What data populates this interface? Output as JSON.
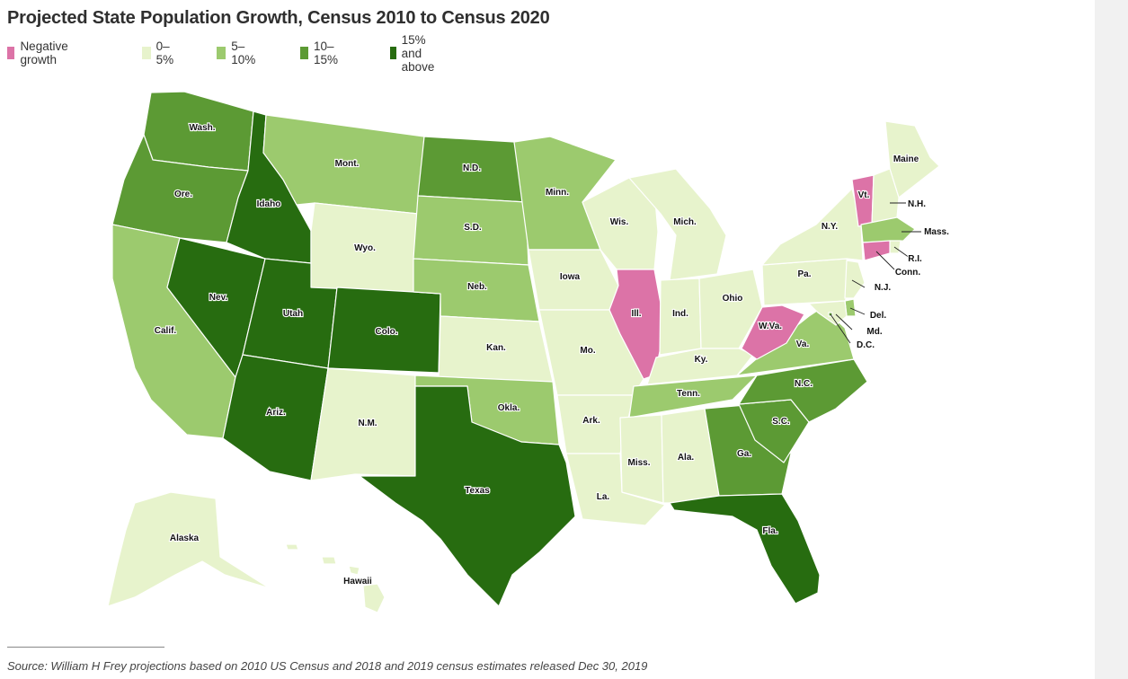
{
  "title": "Projected State Population Growth, Census 2010 to Census 2020",
  "legend": [
    {
      "label": "Negative growth",
      "color": "#dc73a7"
    },
    {
      "label": "0–5%",
      "color": "#e7f3cc"
    },
    {
      "label": "5–10%",
      "color": "#9cca6e"
    },
    {
      "label": "10–15%",
      "color": "#5c9a34"
    },
    {
      "label": "15% and above",
      "color": "#276c10"
    }
  ],
  "states": [
    {
      "label": "Wash.",
      "category": "10–15%"
    },
    {
      "label": "Ore.",
      "category": "10–15%"
    },
    {
      "label": "Calif.",
      "category": "5–10%"
    },
    {
      "label": "Idaho",
      "category": "15% and above"
    },
    {
      "label": "Nev.",
      "category": "15% and above"
    },
    {
      "label": "Utah",
      "category": "15% and above"
    },
    {
      "label": "Ariz.",
      "category": "15% and above"
    },
    {
      "label": "Mont.",
      "category": "5–10%"
    },
    {
      "label": "Wyo.",
      "category": "0–5%"
    },
    {
      "label": "Colo.",
      "category": "15% and above"
    },
    {
      "label": "N.M.",
      "category": "0–5%"
    },
    {
      "label": "N.D.",
      "category": "10–15%"
    },
    {
      "label": "S.D.",
      "category": "5–10%"
    },
    {
      "label": "Neb.",
      "category": "5–10%"
    },
    {
      "label": "Kan.",
      "category": "0–5%"
    },
    {
      "label": "Okla.",
      "category": "5–10%"
    },
    {
      "label": "Texas",
      "category": "15% and above"
    },
    {
      "label": "Minn.",
      "category": "5–10%"
    },
    {
      "label": "Iowa",
      "category": "0–5%"
    },
    {
      "label": "Mo.",
      "category": "0–5%"
    },
    {
      "label": "Ark.",
      "category": "0–5%"
    },
    {
      "label": "La.",
      "category": "0–5%"
    },
    {
      "label": "Wis.",
      "category": "0–5%"
    },
    {
      "label": "Ill.",
      "category": "Negative growth"
    },
    {
      "label": "Mich.",
      "category": "0–5%"
    },
    {
      "label": "Ind.",
      "category": "0–5%"
    },
    {
      "label": "Ohio",
      "category": "0–5%"
    },
    {
      "label": "Ky.",
      "category": "0–5%"
    },
    {
      "label": "Tenn.",
      "category": "5–10%"
    },
    {
      "label": "Miss.",
      "category": "0–5%"
    },
    {
      "label": "Ala.",
      "category": "0–5%"
    },
    {
      "label": "Ga.",
      "category": "10–15%"
    },
    {
      "label": "Fla.",
      "category": "15% and above"
    },
    {
      "label": "S.C.",
      "category": "10–15%"
    },
    {
      "label": "N.C.",
      "category": "10–15%"
    },
    {
      "label": "Va.",
      "category": "5–10%"
    },
    {
      "label": "W.Va.",
      "category": "Negative growth"
    },
    {
      "label": "Pa.",
      "category": "0–5%"
    },
    {
      "label": "N.Y.",
      "category": "0–5%"
    },
    {
      "label": "Maine",
      "category": "0–5%"
    },
    {
      "label": "Vt.",
      "category": "Negative growth"
    },
    {
      "label": "N.H.",
      "category": "0–5%"
    },
    {
      "label": "Mass.",
      "category": "5–10%"
    },
    {
      "label": "R.I.",
      "category": "0–5%"
    },
    {
      "label": "Conn.",
      "category": "Negative growth"
    },
    {
      "label": "N.J.",
      "category": "0–5%"
    },
    {
      "label": "Del.",
      "category": "5–10%"
    },
    {
      "label": "Md.",
      "category": "0–5%"
    },
    {
      "label": "D.C.",
      "category": "10–15%"
    },
    {
      "label": "Alaska",
      "category": "0–5%"
    },
    {
      "label": "Hawaii",
      "category": "0–5%"
    }
  ],
  "source": "Source: William H Frey projections based on 2010 US Census and 2018 and 2019 census estimates released Dec 30, 2019"
}
